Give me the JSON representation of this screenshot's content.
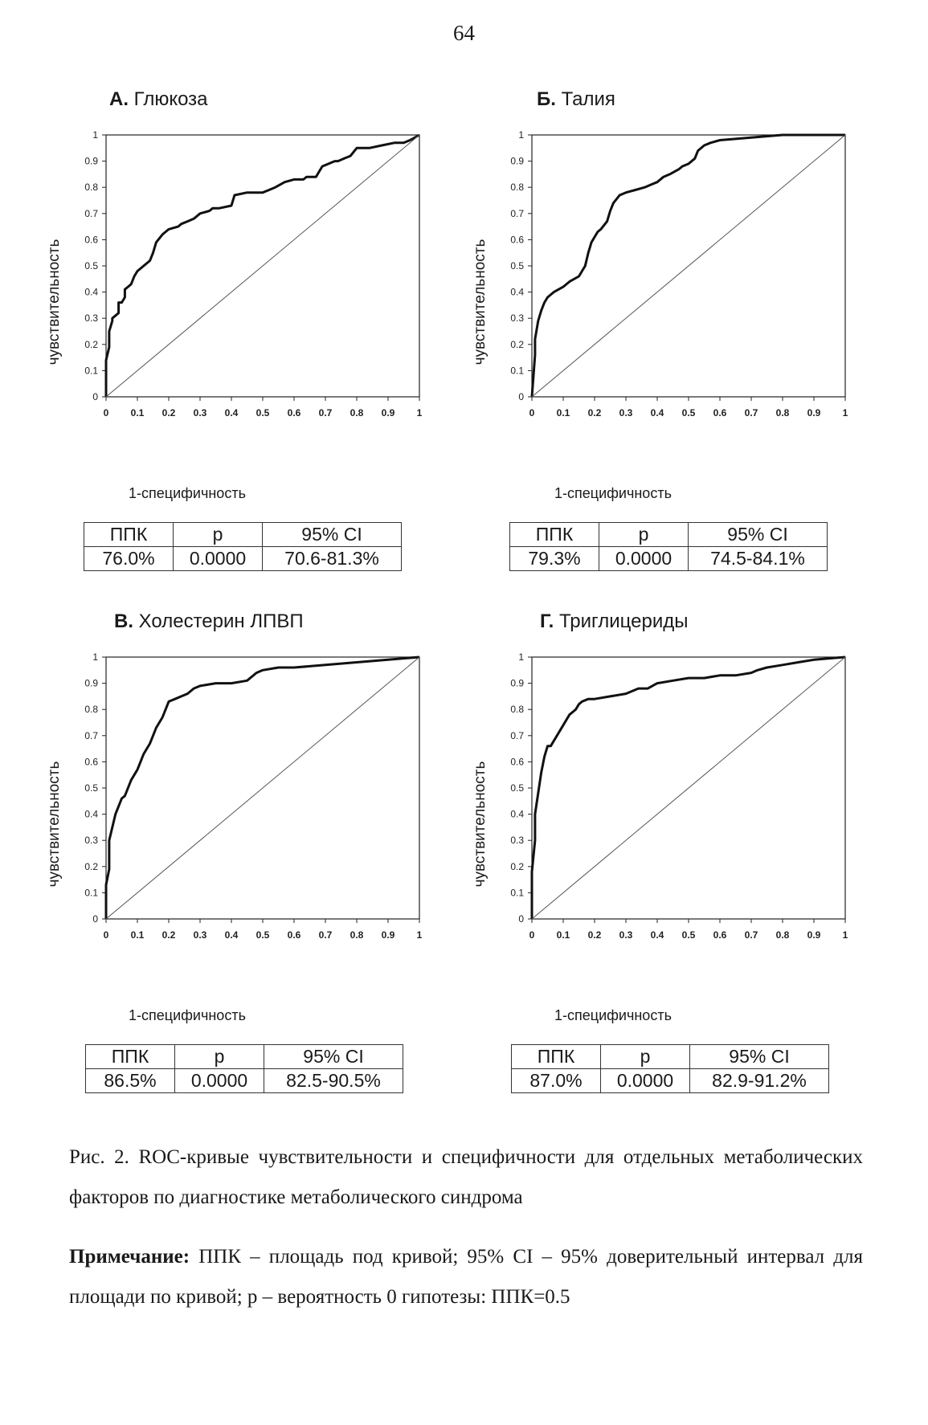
{
  "page_number": "64",
  "panels": [
    {
      "letter": "А.",
      "title": "Глюкоза",
      "ylabel": "чувствительность",
      "xlabel": "1-специфичность",
      "table": {
        "headers": [
          "ППК",
          "p",
          "95% CI"
        ],
        "values": [
          "76.0%",
          "0.0000",
          "70.6-81.3%"
        ]
      }
    },
    {
      "letter": "Б.",
      "title": "Талия",
      "ylabel": "чувствительность",
      "xlabel": "1-специфичность",
      "table": {
        "headers": [
          "ППК",
          "p",
          "95% CI"
        ],
        "values": [
          "79.3%",
          "0.0000",
          "74.5-84.1%"
        ]
      }
    },
    {
      "letter": "В.",
      "title": "Холестерин ЛПВП",
      "ylabel": "чувствительность",
      "xlabel": "1-специфичность",
      "table": {
        "headers": [
          "ППК",
          "p",
          "95% CI"
        ],
        "values": [
          "86.5%",
          "0.0000",
          "82.5-90.5%"
        ]
      }
    },
    {
      "letter": "Г.",
      "title": "Триглицериды",
      "ylabel": "чувствительность",
      "xlabel": "1-специфичность",
      "table": {
        "headers": [
          "ППК",
          "p",
          "95% CI"
        ],
        "values": [
          "87.0%",
          "0.0000",
          "82.9-91.2%"
        ]
      }
    }
  ],
  "caption": "Рис. 2. ROC-кривые чувствительности и специфичности для отдельных метаболических факторов по диагностике метаболического синдрома",
  "note": {
    "label": "Примечание:",
    "text": " ППК – площадь под кривой; 95% CI – 95% доверительный интервал для площади по кривой; p – вероятность 0 гипотезы: ППК=0.5"
  },
  "chart_data": [
    {
      "type": "line",
      "title": "А. Глюкоза",
      "xlabel": "1-специфичность",
      "ylabel": "чувствительность",
      "xlim": [
        0,
        1
      ],
      "ylim": [
        0,
        1
      ],
      "xticks": [
        "0",
        "0.1",
        "0.2",
        "0.3",
        "0.4",
        "0.5",
        "0.6",
        "0.7",
        "0.8",
        "0.9",
        "1"
      ],
      "yticks": [
        "0",
        "0.1",
        "0.2",
        "0.3",
        "0.4",
        "0.5",
        "0.6",
        "0.7",
        "0.8",
        "0.9",
        "1"
      ],
      "series": [
        {
          "x": [
            0,
            0,
            0.01,
            0.01,
            0.02,
            0.02,
            0.04,
            0.04,
            0.05,
            0.06,
            0.06,
            0.07,
            0.08,
            0.09,
            0.1,
            0.12,
            0.14,
            0.15,
            0.16,
            0.18,
            0.2,
            0.23,
            0.24,
            0.26,
            0.28,
            0.3,
            0.33,
            0.34,
            0.36,
            0.4,
            0.41,
            0.45,
            0.5,
            0.52,
            0.54,
            0.57,
            0.6,
            0.63,
            0.64,
            0.67,
            0.68,
            0.69,
            0.73,
            0.74,
            0.76,
            0.78,
            0.8,
            0.84,
            0.88,
            0.92,
            0.95,
            0.97,
            1
          ],
          "y": [
            0,
            0.14,
            0.19,
            0.25,
            0.29,
            0.3,
            0.32,
            0.36,
            0.36,
            0.38,
            0.41,
            0.42,
            0.43,
            0.46,
            0.48,
            0.5,
            0.52,
            0.55,
            0.59,
            0.62,
            0.64,
            0.65,
            0.66,
            0.67,
            0.68,
            0.7,
            0.71,
            0.72,
            0.72,
            0.73,
            0.77,
            0.78,
            0.78,
            0.79,
            0.8,
            0.82,
            0.83,
            0.83,
            0.84,
            0.84,
            0.86,
            0.88,
            0.9,
            0.9,
            0.91,
            0.92,
            0.95,
            0.95,
            0.96,
            0.97,
            0.97,
            0.98,
            1
          ]
        },
        {
          "x": [
            0,
            1
          ],
          "y": [
            0,
            1
          ]
        }
      ]
    },
    {
      "type": "line",
      "title": "Б. Талия",
      "xlabel": "1-специфичность",
      "ylabel": "чувствительность",
      "xlim": [
        0,
        1
      ],
      "ylim": [
        0,
        1
      ],
      "xticks": [
        "0",
        "0.1",
        "0.2",
        "0.3",
        "0.4",
        "0.5",
        "0.6",
        "0.7",
        "0.8",
        "0.9",
        "1"
      ],
      "yticks": [
        "0",
        "0.1",
        "0.2",
        "0.3",
        "0.4",
        "0.5",
        "0.6",
        "0.7",
        "0.8",
        "0.9",
        "1"
      ],
      "series": [
        {
          "x": [
            0,
            0.01,
            0.01,
            0.02,
            0.03,
            0.04,
            0.05,
            0.07,
            0.1,
            0.12,
            0.15,
            0.17,
            0.18,
            0.19,
            0.2,
            0.21,
            0.22,
            0.24,
            0.25,
            0.26,
            0.28,
            0.3,
            0.33,
            0.36,
            0.38,
            0.4,
            0.42,
            0.44,
            0.47,
            0.48,
            0.5,
            0.52,
            0.53,
            0.55,
            0.57,
            0.6,
            0.7,
            0.8,
            1
          ],
          "y": [
            0,
            0.16,
            0.22,
            0.29,
            0.33,
            0.36,
            0.38,
            0.4,
            0.42,
            0.44,
            0.46,
            0.5,
            0.55,
            0.59,
            0.61,
            0.63,
            0.64,
            0.67,
            0.71,
            0.74,
            0.77,
            0.78,
            0.79,
            0.8,
            0.81,
            0.82,
            0.84,
            0.85,
            0.87,
            0.88,
            0.89,
            0.91,
            0.94,
            0.96,
            0.97,
            0.98,
            0.99,
            1,
            1
          ]
        },
        {
          "x": [
            0,
            1
          ],
          "y": [
            0,
            1
          ]
        }
      ]
    },
    {
      "type": "line",
      "title": "В. Холестерин ЛПВП",
      "xlabel": "1-специфичность",
      "ylabel": "чувствительность",
      "xlim": [
        0,
        1
      ],
      "ylim": [
        0,
        1
      ],
      "xticks": [
        "0",
        "0.1",
        "0.2",
        "0.3",
        "0.4",
        "0.5",
        "0.6",
        "0.7",
        "0.8",
        "0.9",
        "1"
      ],
      "yticks": [
        "0",
        "0.1",
        "0.2",
        "0.3",
        "0.4",
        "0.5",
        "0.6",
        "0.7",
        "0.8",
        "0.9",
        "1"
      ],
      "series": [
        {
          "x": [
            0,
            0,
            0.01,
            0.01,
            0.02,
            0.03,
            0.04,
            0.05,
            0.06,
            0.07,
            0.08,
            0.09,
            0.1,
            0.11,
            0.12,
            0.13,
            0.14,
            0.15,
            0.16,
            0.18,
            0.2,
            0.22,
            0.24,
            0.26,
            0.28,
            0.3,
            0.35,
            0.4,
            0.45,
            0.48,
            0.5,
            0.55,
            0.6,
            0.7,
            0.8,
            0.9,
            1
          ],
          "y": [
            0,
            0.13,
            0.19,
            0.3,
            0.35,
            0.4,
            0.43,
            0.46,
            0.47,
            0.5,
            0.53,
            0.55,
            0.57,
            0.6,
            0.63,
            0.65,
            0.67,
            0.7,
            0.73,
            0.77,
            0.83,
            0.84,
            0.85,
            0.86,
            0.88,
            0.89,
            0.9,
            0.9,
            0.91,
            0.94,
            0.95,
            0.96,
            0.96,
            0.97,
            0.98,
            0.99,
            1
          ]
        },
        {
          "x": [
            0,
            1
          ],
          "y": [
            0,
            1
          ]
        }
      ]
    },
    {
      "type": "line",
      "title": "Г. Триглицериды",
      "xlabel": "1-специфичность",
      "ylabel": "чувствительность",
      "xlim": [
        0,
        1
      ],
      "ylim": [
        0,
        1
      ],
      "xticks": [
        "0",
        "0.1",
        "0.2",
        "0.3",
        "0.4",
        "0.5",
        "0.6",
        "0.7",
        "0.8",
        "0.9",
        "1"
      ],
      "yticks": [
        "0",
        "0.1",
        "0.2",
        "0.3",
        "0.4",
        "0.5",
        "0.6",
        "0.7",
        "0.8",
        "0.9",
        "1"
      ],
      "series": [
        {
          "x": [
            0,
            0,
            0.01,
            0.01,
            0.02,
            0.03,
            0.04,
            0.05,
            0.06,
            0.07,
            0.08,
            0.09,
            0.1,
            0.11,
            0.12,
            0.13,
            0.14,
            0.15,
            0.16,
            0.18,
            0.2,
            0.25,
            0.3,
            0.34,
            0.37,
            0.4,
            0.45,
            0.5,
            0.55,
            0.6,
            0.65,
            0.7,
            0.72,
            0.75,
            0.8,
            0.85,
            0.9,
            1
          ],
          "y": [
            0,
            0.18,
            0.3,
            0.4,
            0.48,
            0.56,
            0.62,
            0.66,
            0.66,
            0.68,
            0.7,
            0.72,
            0.74,
            0.76,
            0.78,
            0.79,
            0.8,
            0.82,
            0.83,
            0.84,
            0.84,
            0.85,
            0.86,
            0.88,
            0.88,
            0.9,
            0.91,
            0.92,
            0.92,
            0.93,
            0.93,
            0.94,
            0.95,
            0.96,
            0.97,
            0.98,
            0.99,
            1
          ]
        },
        {
          "x": [
            0,
            1
          ],
          "y": [
            0,
            1
          ]
        }
      ]
    }
  ]
}
